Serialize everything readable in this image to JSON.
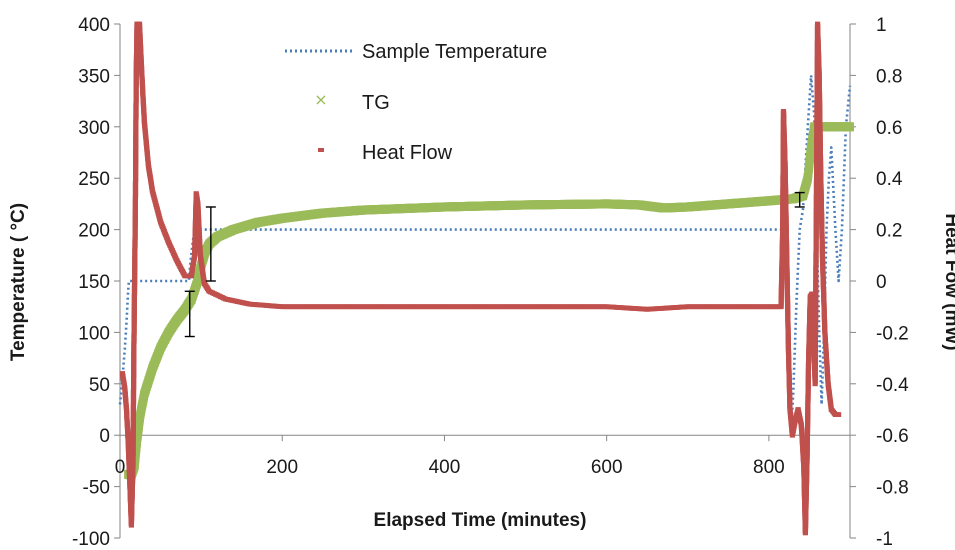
{
  "chart_data": {
    "type": "scatter",
    "xlabel": "Elapsed Time (minutes)",
    "ylabel_left": "Temperature ( °C)",
    "ylabel_right": "Heat Fow (mW)",
    "xlim": [
      0,
      900
    ],
    "ylim_left": [
      -100,
      400
    ],
    "ylim_right": [
      -1,
      1
    ],
    "x_ticks": [
      "0",
      "200",
      "400",
      "600",
      "800"
    ],
    "y_left_ticks": [
      "-100",
      "-50",
      "0",
      "50",
      "100",
      "150",
      "200",
      "250",
      "300",
      "350",
      "400"
    ],
    "y_right_ticks": [
      "-1",
      "-0.8",
      "-0.6",
      "-0.4",
      "-0.2",
      "0",
      "0.2",
      "0.4",
      "0.6",
      "0.8",
      "1"
    ],
    "grid": false,
    "legend_position": "top-center",
    "legend": [
      "Sample Temperature",
      "TG",
      "Heat Flow"
    ],
    "colors": {
      "sample_temperature": "#4a7ebb",
      "tg": "#9bbb59",
      "heat_flow": "#c0504d",
      "error_bar": "#000000"
    },
    "series": [
      {
        "name": "Sample Temperature",
        "axis": "left",
        "style": "dotted-line",
        "points": [
          [
            0,
            30
          ],
          [
            3,
            55
          ],
          [
            6,
            85
          ],
          [
            8,
            110
          ],
          [
            10,
            140
          ],
          [
            11,
            150
          ],
          [
            30,
            150
          ],
          [
            70,
            150
          ],
          [
            85,
            150
          ],
          [
            87,
            170
          ],
          [
            90,
            190
          ],
          [
            93,
            200
          ],
          [
            100,
            200
          ],
          [
            200,
            200
          ],
          [
            400,
            200
          ],
          [
            600,
            200
          ],
          [
            800,
            200
          ],
          [
            818,
            200
          ],
          [
            821,
            150
          ],
          [
            824,
            60
          ],
          [
            827,
            0
          ],
          [
            830,
            40
          ],
          [
            834,
            130
          ],
          [
            838,
            200
          ],
          [
            842,
            220
          ],
          [
            848,
            300
          ],
          [
            852,
            350
          ],
          [
            856,
            310
          ],
          [
            859,
            200
          ],
          [
            862,
            100
          ],
          [
            865,
            30
          ],
          [
            868,
            100
          ],
          [
            871,
            200
          ],
          [
            874,
            250
          ],
          [
            877,
            280
          ],
          [
            882,
            200
          ],
          [
            886,
            150
          ],
          [
            890,
            200
          ],
          [
            895,
            300
          ],
          [
            900,
            340
          ]
        ]
      },
      {
        "name": "TG",
        "axis": "left",
        "style": "markers",
        "points": [
          [
            10,
            -38
          ],
          [
            14,
            -39
          ],
          [
            18,
            -30
          ],
          [
            21,
            -5
          ],
          [
            25,
            20
          ],
          [
            30,
            40
          ],
          [
            40,
            65
          ],
          [
            50,
            85
          ],
          [
            60,
            100
          ],
          [
            70,
            112
          ],
          [
            80,
            122
          ],
          [
            88,
            132
          ],
          [
            95,
            148
          ],
          [
            100,
            165
          ],
          [
            105,
            178
          ],
          [
            110,
            186
          ],
          [
            120,
            193
          ],
          [
            140,
            200
          ],
          [
            170,
            207
          ],
          [
            200,
            211
          ],
          [
            250,
            216
          ],
          [
            300,
            219
          ],
          [
            400,
            222
          ],
          [
            500,
            224
          ],
          [
            600,
            225
          ],
          [
            640,
            224
          ],
          [
            670,
            221
          ],
          [
            700,
            222
          ],
          [
            750,
            225
          ],
          [
            800,
            228
          ],
          [
            830,
            230
          ],
          [
            842,
            233
          ],
          [
            848,
            250
          ],
          [
            852,
            280
          ],
          [
            856,
            300
          ],
          [
            870,
            300
          ],
          [
            900,
            300
          ]
        ]
      },
      {
        "name": "Heat Flow",
        "axis": "right",
        "style": "markers",
        "points": [
          [
            3,
            -0.36
          ],
          [
            6,
            -0.42
          ],
          [
            8,
            -0.5
          ],
          [
            10,
            -0.62
          ],
          [
            12,
            -0.78
          ],
          [
            14,
            -0.95
          ],
          [
            16,
            -0.72
          ],
          [
            17,
            -0.3
          ],
          [
            19,
            0.3
          ],
          [
            20,
            0.8
          ],
          [
            21,
            1.0
          ],
          [
            24,
            1.0
          ],
          [
            27,
            0.8
          ],
          [
            30,
            0.62
          ],
          [
            35,
            0.45
          ],
          [
            40,
            0.35
          ],
          [
            50,
            0.23
          ],
          [
            60,
            0.15
          ],
          [
            70,
            0.08
          ],
          [
            80,
            0.02
          ],
          [
            88,
            0.02
          ],
          [
            92,
            0.1
          ],
          [
            94,
            0.34
          ],
          [
            96,
            0.3
          ],
          [
            99,
            0.1
          ],
          [
            104,
            -0.01
          ],
          [
            110,
            -0.04
          ],
          [
            130,
            -0.07
          ],
          [
            160,
            -0.09
          ],
          [
            200,
            -0.1
          ],
          [
            300,
            -0.1
          ],
          [
            400,
            -0.1
          ],
          [
            500,
            -0.1
          ],
          [
            600,
            -0.1
          ],
          [
            650,
            -0.11
          ],
          [
            700,
            -0.1
          ],
          [
            800,
            -0.1
          ],
          [
            815,
            -0.1
          ],
          [
            817,
            0.2
          ],
          [
            818,
            0.66
          ],
          [
            820,
            0.45
          ],
          [
            822,
            0.1
          ],
          [
            824,
            -0.25
          ],
          [
            826,
            -0.5
          ],
          [
            829,
            -0.6
          ],
          [
            832,
            -0.55
          ],
          [
            836,
            -0.5
          ],
          [
            840,
            -0.56
          ],
          [
            843,
            -0.72
          ],
          [
            845,
            -0.98
          ],
          [
            847,
            -0.7
          ],
          [
            849,
            -0.3
          ],
          [
            851,
            -0.06
          ],
          [
            853,
            -0.05
          ],
          [
            855,
            -0.2
          ],
          [
            857,
            -0.4
          ],
          [
            859,
            0.5
          ],
          [
            860,
            1.0
          ],
          [
            862,
            0.8
          ],
          [
            864,
            0.4
          ],
          [
            866,
            0.1
          ],
          [
            869,
            -0.2
          ],
          [
            873,
            -0.4
          ],
          [
            877,
            -0.5
          ],
          [
            882,
            -0.52
          ],
          [
            886,
            -0.52
          ]
        ]
      }
    ],
    "error_bars": [
      {
        "x": 86,
        "low": 96,
        "high": 140
      },
      {
        "x": 112,
        "low": 150,
        "high": 222
      },
      {
        "x": 838,
        "low": 222,
        "high": 236
      }
    ]
  }
}
